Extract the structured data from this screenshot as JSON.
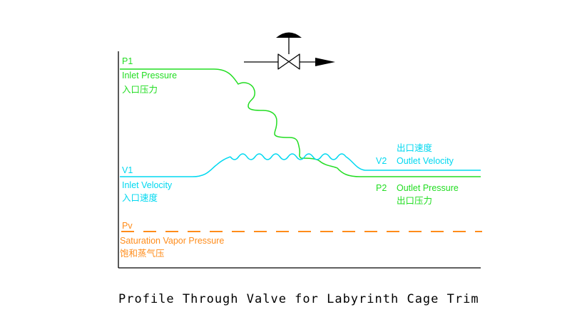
{
  "colors": {
    "pressure": "#22dd22",
    "velocity": "#00d8f0",
    "vapor": "#ff8c1a",
    "axis": "#000000",
    "text": "#000000"
  },
  "labels": {
    "p1": "P1",
    "inlet_pressure": "Inlet Pressure",
    "inlet_pressure_cn": "入口压力",
    "v1": "V1",
    "inlet_velocity": "Inlet Velocity",
    "inlet_velocity_cn": "入口速度",
    "outlet_velocity_cn": "出口速度",
    "v2": "V2",
    "outlet_velocity": "Outlet Velocity",
    "p2": "P2",
    "outlet_pressure": "Outlet Pressure",
    "outlet_pressure_cn": "出口压力",
    "pv": "Pv",
    "saturation_vapor_pressure": "Saturation Vapor Pressure",
    "saturation_vapor_pressure_cn": "饱和蒸气压"
  },
  "caption": "Profile Through Valve for Labyrinth Cage Trim",
  "icons": {
    "valve": "valve-icon",
    "flow_arrow": "flow-arrow-icon"
  }
}
